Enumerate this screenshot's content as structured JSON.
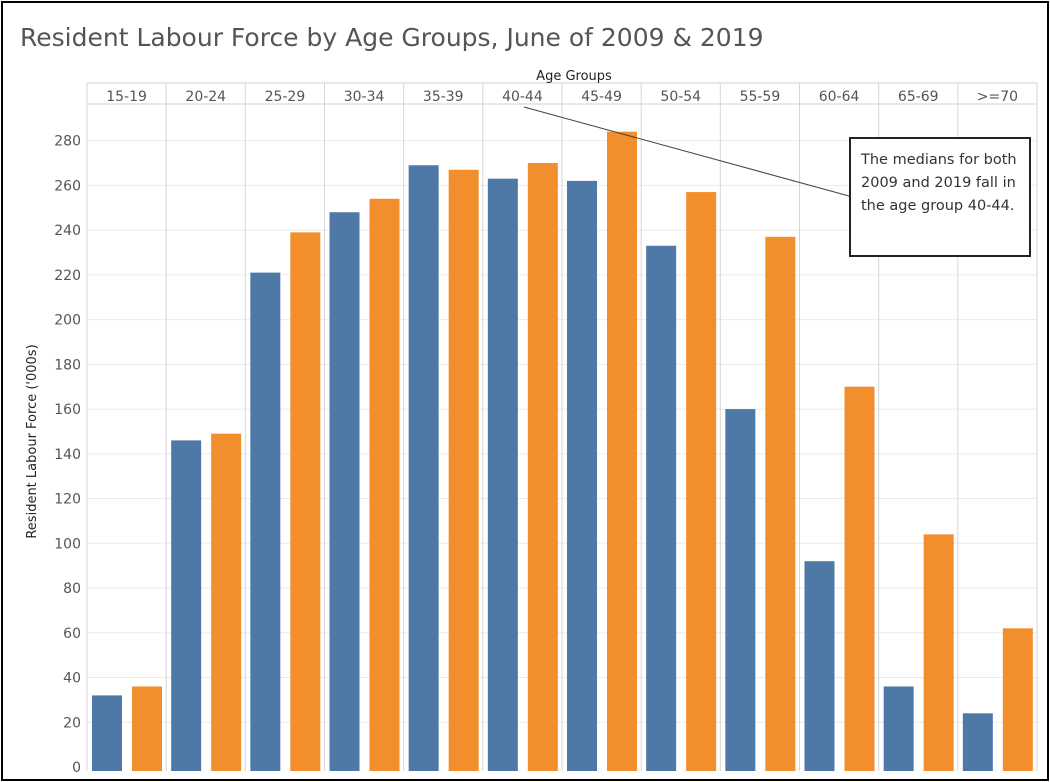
{
  "chart_data": {
    "type": "bar",
    "title": "Resident Labour Force by Age Groups, June of 2009 & 2019",
    "xlabel": "Age Groups",
    "ylabel": "Resident Labour Force ('000s)",
    "categories": [
      "15-19",
      "20-24",
      "25-29",
      "30-34",
      "35-39",
      "40-44",
      "45-49",
      "50-54",
      "55-59",
      "60-64",
      "65-69",
      ">=70"
    ],
    "series": [
      {
        "name": "2009",
        "color": "#4e79a7",
        "values": [
          32,
          146,
          221,
          248,
          269,
          263,
          262,
          233,
          160,
          92,
          36,
          24
        ]
      },
      {
        "name": "2019",
        "color": "#f28e2b",
        "values": [
          36,
          149,
          239,
          254,
          267,
          270,
          284,
          257,
          237,
          170,
          104,
          62
        ]
      }
    ],
    "yticks": [
      0,
      20,
      40,
      60,
      80,
      100,
      120,
      140,
      160,
      180,
      200,
      220,
      240,
      260,
      280
    ],
    "ylim": [
      0,
      293
    ],
    "grid": true,
    "annotation": "The medians for both 2009 and 2019 fall in the age group 40-44."
  }
}
